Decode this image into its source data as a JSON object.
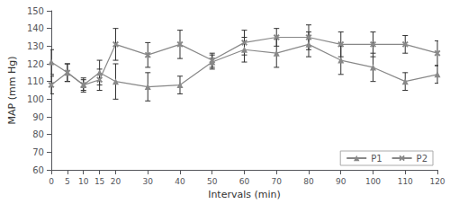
{
  "chart_data": {
    "type": "line",
    "xlabel": "Intervals (min)",
    "ylabel": "MAP (mm Hg)",
    "x": [
      0,
      5,
      10,
      15,
      20,
      30,
      40,
      50,
      60,
      70,
      80,
      90,
      100,
      110,
      120
    ],
    "series": [
      {
        "name": "P1",
        "color": "#888888",
        "marker": "triangle",
        "line_style": "solid",
        "values": [
          121,
          115,
          108,
          115,
          110,
          107,
          108,
          121,
          128,
          126,
          131,
          122,
          118,
          110,
          114
        ],
        "errors": [
          7,
          5,
          3,
          7,
          10,
          8,
          5,
          4,
          7,
          8,
          7,
          8,
          8,
          5,
          5
        ]
      },
      {
        "name": "P2",
        "color": "#888888",
        "marker": "x",
        "line_style": "solid",
        "values": [
          108,
          115,
          108,
          111,
          131,
          125,
          131,
          122,
          132,
          135,
          135,
          131,
          131,
          131,
          126
        ],
        "errors": [
          5,
          5,
          4,
          6,
          9,
          7,
          8,
          4,
          7,
          5,
          7,
          7,
          7,
          5,
          7
        ]
      }
    ],
    "xlim": [
      0,
      120
    ],
    "xticks": [
      0,
      5,
      10,
      15,
      20,
      30,
      40,
      50,
      60,
      70,
      80,
      90,
      100,
      110,
      120
    ],
    "ylim": [
      60,
      150
    ],
    "yticks": [
      60,
      70,
      80,
      90,
      100,
      110,
      120,
      130,
      140,
      150
    ],
    "legend": "lower right",
    "grid": false
  }
}
